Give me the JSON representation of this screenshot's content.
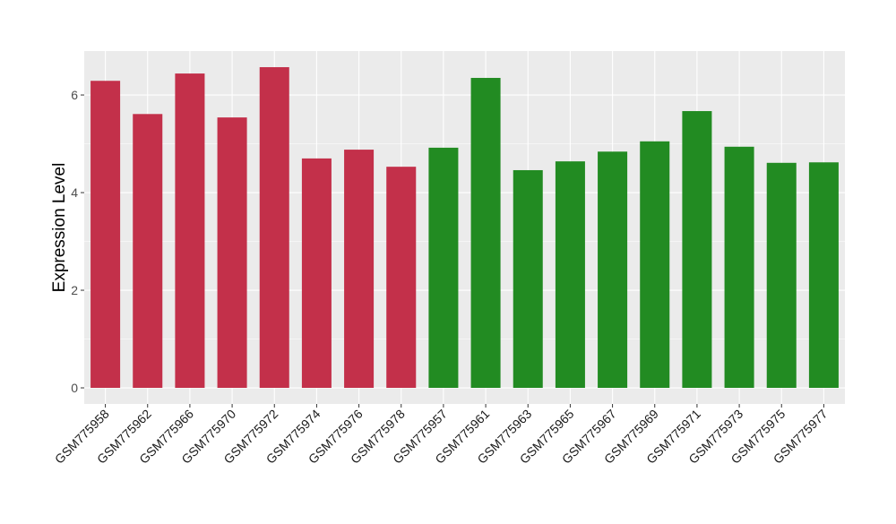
{
  "chart_data": {
    "type": "bar",
    "title": "",
    "xlabel": "",
    "ylabel": "Expression Level",
    "ylim": [
      -0.33,
      6.9
    ],
    "yticks": [
      0,
      2,
      4,
      6
    ],
    "grid": true,
    "legend": "none",
    "categories": [
      "GSM775958",
      "GSM775962",
      "GSM775966",
      "GSM775970",
      "GSM775972",
      "GSM775974",
      "GSM775976",
      "GSM775978",
      "GSM775957",
      "GSM775961",
      "GSM775963",
      "GSM775965",
      "GSM775967",
      "GSM775969",
      "GSM775971",
      "GSM775973",
      "GSM775975",
      "GSM775977"
    ],
    "values": [
      6.29,
      5.61,
      6.44,
      5.54,
      6.57,
      4.7,
      4.88,
      4.53,
      4.92,
      6.35,
      4.46,
      4.64,
      4.84,
      5.05,
      5.67,
      4.94,
      4.61,
      4.62
    ],
    "groups": [
      "a",
      "a",
      "a",
      "a",
      "a",
      "a",
      "a",
      "a",
      "b",
      "b",
      "b",
      "b",
      "b",
      "b",
      "b",
      "b",
      "b",
      "b"
    ],
    "colors": {
      "a": "#C3304A",
      "b": "#228B22",
      "panel": "#EBEBEB",
      "grid": "#FFFFFF"
    }
  }
}
